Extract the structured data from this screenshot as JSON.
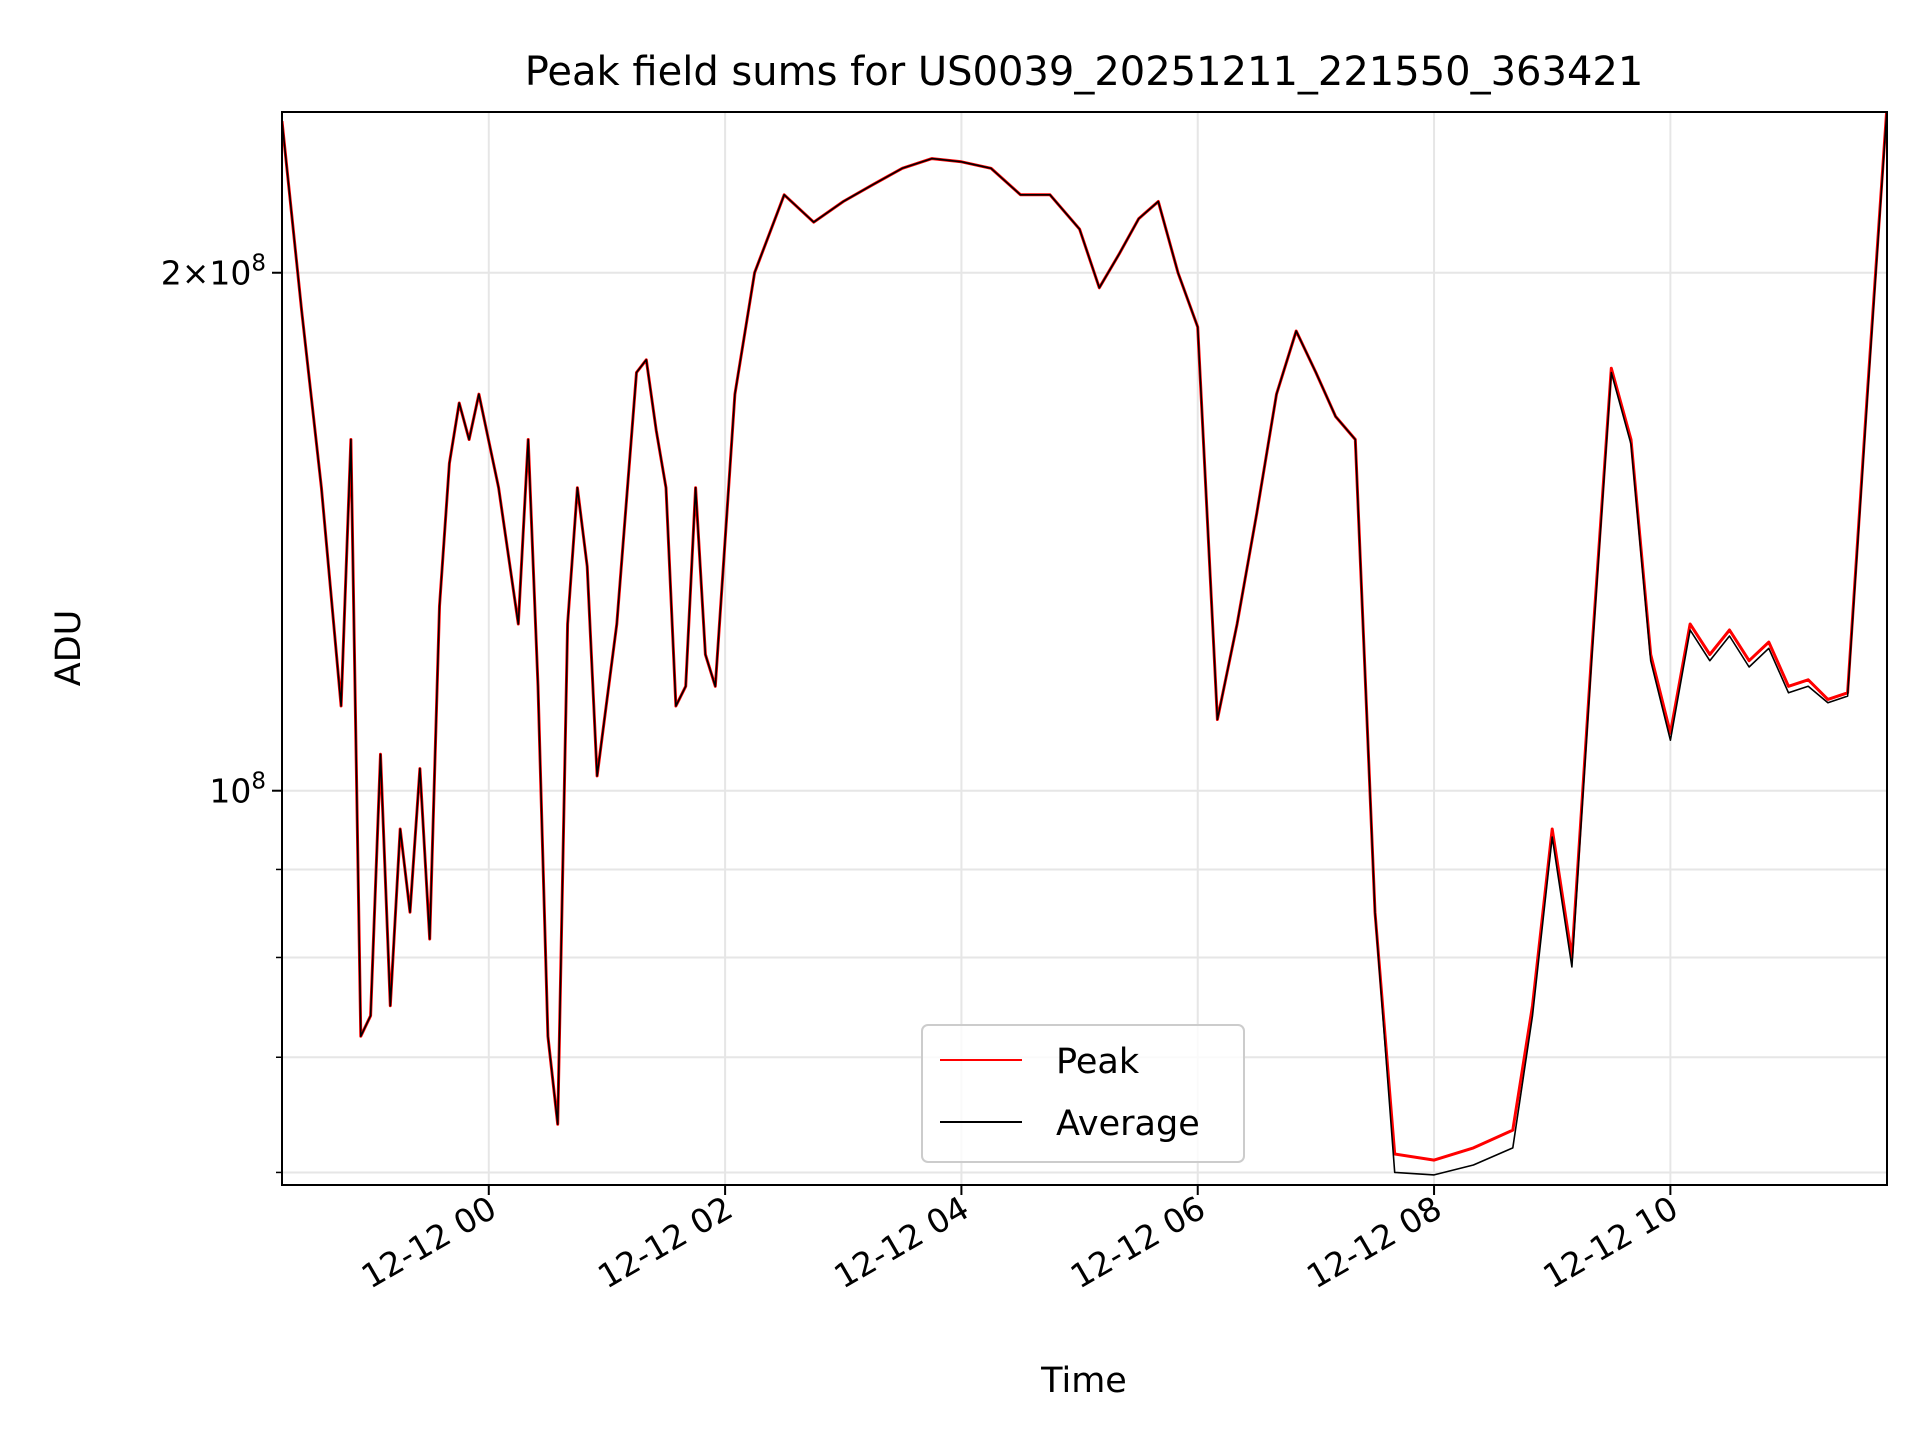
{
  "chart_data": {
    "type": "line",
    "title": "Peak field sums for US0039_20251211_221550_363421",
    "xlabel": "Time",
    "ylabel": "ADU",
    "y_scale": "log",
    "ylim": [
      59000000,
      248000000
    ],
    "xlim": [
      "2025-12-11 22:15",
      "2025-12-12 11:50"
    ],
    "x_ticks": [
      "12-12 00",
      "12-12 02",
      "12-12 04",
      "12-12 06",
      "12-12 08",
      "12-12 10"
    ],
    "x_tick_values": [
      "2025-12-12 00:00",
      "2025-12-12 02:00",
      "2025-12-12 04:00",
      "2025-12-12 06:00",
      "2025-12-12 08:00",
      "2025-12-12 10:00"
    ],
    "y_ticks": [
      {
        "value": 200000000,
        "mantissa": "2×10",
        "exp": "8"
      },
      {
        "value": 100000000,
        "mantissa": "10",
        "exp": "8"
      }
    ],
    "y_minor_ticks": [
      60000000,
      70000000,
      80000000,
      90000000
    ],
    "grid": true,
    "legend_position": "lower-center",
    "series": [
      {
        "name": "Peak",
        "color": "#ff0000",
        "x": [
          "2025-12-11 22:15",
          "2025-12-11 22:25",
          "2025-12-11 22:35",
          "2025-12-11 22:45",
          "2025-12-11 22:50",
          "2025-12-11 22:55",
          "2025-12-11 23:00",
          "2025-12-11 23:05",
          "2025-12-11 23:10",
          "2025-12-11 23:15",
          "2025-12-11 23:20",
          "2025-12-11 23:25",
          "2025-12-11 23:30",
          "2025-12-11 23:35",
          "2025-12-11 23:40",
          "2025-12-11 23:45",
          "2025-12-11 23:50",
          "2025-12-11 23:55",
          "2025-12-12 00:05",
          "2025-12-12 00:15",
          "2025-12-12 00:20",
          "2025-12-12 00:25",
          "2025-12-12 00:30",
          "2025-12-12 00:35",
          "2025-12-12 00:40",
          "2025-12-12 00:45",
          "2025-12-12 00:50",
          "2025-12-12 00:55",
          "2025-12-12 01:05",
          "2025-12-12 01:15",
          "2025-12-12 01:20",
          "2025-12-12 01:25",
          "2025-12-12 01:30",
          "2025-12-12 01:35",
          "2025-12-12 01:40",
          "2025-12-12 01:45",
          "2025-12-12 01:50",
          "2025-12-12 01:55",
          "2025-12-12 02:05",
          "2025-12-12 02:15",
          "2025-12-12 02:30",
          "2025-12-12 02:45",
          "2025-12-12 03:00",
          "2025-12-12 03:15",
          "2025-12-12 03:30",
          "2025-12-12 03:45",
          "2025-12-12 04:00",
          "2025-12-12 04:15",
          "2025-12-12 04:30",
          "2025-12-12 04:45",
          "2025-12-12 05:00",
          "2025-12-12 05:10",
          "2025-12-12 05:20",
          "2025-12-12 05:30",
          "2025-12-12 05:40",
          "2025-12-12 05:50",
          "2025-12-12 06:00",
          "2025-12-12 06:10",
          "2025-12-12 06:20",
          "2025-12-12 06:30",
          "2025-12-12 06:40",
          "2025-12-12 06:50",
          "2025-12-12 07:00",
          "2025-12-12 07:10",
          "2025-12-12 07:20",
          "2025-12-12 07:30",
          "2025-12-12 07:40",
          "2025-12-12 08:00",
          "2025-12-12 08:20",
          "2025-12-12 08:40",
          "2025-12-12 08:50",
          "2025-12-12 09:00",
          "2025-12-12 09:10",
          "2025-12-12 09:20",
          "2025-12-12 09:30",
          "2025-12-12 09:40",
          "2025-12-12 09:50",
          "2025-12-12 10:00",
          "2025-12-12 10:10",
          "2025-12-12 10:20",
          "2025-12-12 10:30",
          "2025-12-12 10:40",
          "2025-12-12 10:50",
          "2025-12-12 11:00",
          "2025-12-12 11:10",
          "2025-12-12 11:20",
          "2025-12-12 11:30",
          "2025-12-12 11:40",
          "2025-12-12 11:50"
        ],
        "y": [
          245000000,
          190000000,
          150000000,
          112000000,
          160000000,
          72000000,
          74000000,
          105000000,
          75000000,
          95000000,
          85000000,
          103000000,
          82000000,
          128000000,
          155000000,
          168000000,
          160000000,
          170000000,
          150000000,
          125000000,
          160000000,
          115000000,
          72000000,
          64000000,
          125000000,
          150000000,
          135000000,
          102000000,
          125000000,
          175000000,
          178000000,
          162000000,
          150000000,
          112000000,
          115000000,
          150000000,
          120000000,
          115000000,
          170000000,
          200000000,
          222000000,
          214000000,
          220000000,
          225000000,
          230000000,
          233000000,
          232000000,
          230000000,
          222000000,
          222000000,
          212000000,
          196000000,
          205000000,
          215000000,
          220000000,
          200000000,
          186000000,
          110000000,
          125000000,
          145000000,
          170000000,
          185000000,
          175000000,
          165000000,
          160000000,
          85000000,
          61500000,
          61000000,
          62000000,
          63500000,
          75000000,
          95000000,
          80000000,
          120000000,
          176000000,
          160000000,
          120000000,
          108000000,
          125000000,
          120000000,
          124000000,
          119000000,
          122000000,
          115000000,
          116000000,
          113000000,
          114000000,
          170000000,
          250000000
        ]
      },
      {
        "name": "Average",
        "color": "#000000",
        "x": [
          "2025-12-11 22:15",
          "2025-12-11 22:25",
          "2025-12-11 22:35",
          "2025-12-11 22:45",
          "2025-12-11 22:50",
          "2025-12-11 22:55",
          "2025-12-11 23:00",
          "2025-12-11 23:05",
          "2025-12-11 23:10",
          "2025-12-11 23:15",
          "2025-12-11 23:20",
          "2025-12-11 23:25",
          "2025-12-11 23:30",
          "2025-12-11 23:35",
          "2025-12-11 23:40",
          "2025-12-11 23:45",
          "2025-12-11 23:50",
          "2025-12-11 23:55",
          "2025-12-12 00:05",
          "2025-12-12 00:15",
          "2025-12-12 00:20",
          "2025-12-12 00:25",
          "2025-12-12 00:30",
          "2025-12-12 00:35",
          "2025-12-12 00:40",
          "2025-12-12 00:45",
          "2025-12-12 00:50",
          "2025-12-12 00:55",
          "2025-12-12 01:05",
          "2025-12-12 01:15",
          "2025-12-12 01:20",
          "2025-12-12 01:25",
          "2025-12-12 01:30",
          "2025-12-12 01:35",
          "2025-12-12 01:40",
          "2025-12-12 01:45",
          "2025-12-12 01:50",
          "2025-12-12 01:55",
          "2025-12-12 02:05",
          "2025-12-12 02:15",
          "2025-12-12 02:30",
          "2025-12-12 02:45",
          "2025-12-12 03:00",
          "2025-12-12 03:15",
          "2025-12-12 03:30",
          "2025-12-12 03:45",
          "2025-12-12 04:00",
          "2025-12-12 04:15",
          "2025-12-12 04:30",
          "2025-12-12 04:45",
          "2025-12-12 05:00",
          "2025-12-12 05:10",
          "2025-12-12 05:20",
          "2025-12-12 05:30",
          "2025-12-12 05:40",
          "2025-12-12 05:50",
          "2025-12-12 06:00",
          "2025-12-12 06:10",
          "2025-12-12 06:20",
          "2025-12-12 06:30",
          "2025-12-12 06:40",
          "2025-12-12 06:50",
          "2025-12-12 07:00",
          "2025-12-12 07:10",
          "2025-12-12 07:20",
          "2025-12-12 07:30",
          "2025-12-12 07:40",
          "2025-12-12 08:00",
          "2025-12-12 08:20",
          "2025-12-12 08:40",
          "2025-12-12 08:50",
          "2025-12-12 09:00",
          "2025-12-12 09:10",
          "2025-12-12 09:20",
          "2025-12-12 09:30",
          "2025-12-12 09:40",
          "2025-12-12 09:50",
          "2025-12-12 10:00",
          "2025-12-12 10:10",
          "2025-12-12 10:20",
          "2025-12-12 10:30",
          "2025-12-12 10:40",
          "2025-12-12 10:50",
          "2025-12-12 11:00",
          "2025-12-12 11:10",
          "2025-12-12 11:20",
          "2025-12-12 11:30",
          "2025-12-12 11:40",
          "2025-12-12 11:50"
        ],
        "y": [
          245000000,
          190000000,
          150000000,
          112000000,
          160000000,
          72000000,
          74000000,
          105000000,
          75000000,
          95000000,
          85000000,
          103000000,
          82000000,
          128000000,
          155000000,
          168000000,
          160000000,
          170000000,
          150000000,
          125000000,
          160000000,
          115000000,
          72000000,
          64000000,
          125000000,
          150000000,
          135000000,
          102000000,
          125000000,
          175000000,
          178000000,
          162000000,
          150000000,
          112000000,
          115000000,
          150000000,
          120000000,
          115000000,
          170000000,
          200000000,
          222000000,
          214000000,
          220000000,
          225000000,
          230000000,
          233000000,
          232000000,
          230000000,
          222000000,
          222000000,
          212000000,
          196000000,
          205000000,
          215000000,
          220000000,
          200000000,
          186000000,
          110000000,
          125000000,
          145000000,
          170000000,
          185000000,
          175000000,
          165000000,
          160000000,
          85000000,
          60000000,
          59800000,
          60600000,
          62000000,
          74000000,
          94000000,
          79000000,
          119000000,
          175000000,
          159000000,
          119000000,
          107000000,
          124000000,
          119000000,
          123000000,
          118000000,
          121000000,
          114000000,
          115000000,
          112500000,
          113500000,
          169000000,
          249000000
        ]
      }
    ]
  }
}
